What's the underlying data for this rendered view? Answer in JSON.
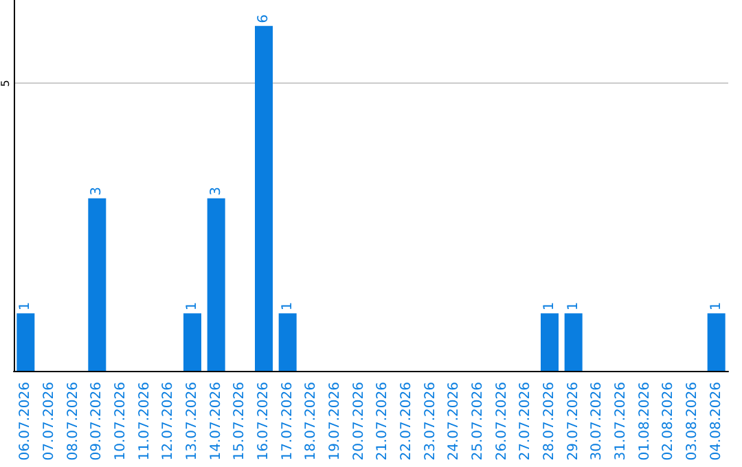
{
  "chart_data": {
    "type": "bar",
    "categories": [
      "06.07.2026",
      "07.07.2026",
      "08.07.2026",
      "09.07.2026",
      "10.07.2026",
      "11.07.2026",
      "12.07.2026",
      "13.07.2026",
      "14.07.2026",
      "15.07.2026",
      "16.07.2026",
      "17.07.2026",
      "18.07.2026",
      "19.07.2026",
      "20.07.2026",
      "21.07.2026",
      "22.07.2026",
      "23.07.2026",
      "24.07.2026",
      "25.07.2026",
      "26.07.2026",
      "27.07.2026",
      "28.07.2026",
      "29.07.2026",
      "30.07.2026",
      "31.07.2026",
      "01.08.2026",
      "02.08.2026",
      "03.08.2026",
      "04.08.2026"
    ],
    "values": [
      1,
      0,
      0,
      3,
      0,
      0,
      0,
      1,
      3,
      0,
      6,
      1,
      0,
      0,
      0,
      0,
      0,
      0,
      0,
      0,
      0,
      0,
      1,
      1,
      0,
      0,
      0,
      0,
      0,
      1
    ],
    "value_labels": [
      "1",
      null,
      null,
      "3",
      null,
      null,
      null,
      "1",
      "3",
      null,
      "6",
      "1",
      null,
      null,
      null,
      null,
      null,
      null,
      null,
      null,
      null,
      null,
      "1",
      "1",
      null,
      null,
      null,
      null,
      null,
      "1"
    ],
    "color": "#0a7ee0",
    "ylim": [
      0,
      6.45
    ],
    "yticks": [
      5
    ],
    "grid": "y"
  }
}
